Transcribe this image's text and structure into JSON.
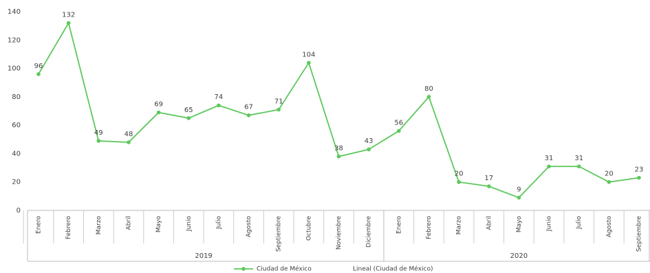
{
  "chart_data": {
    "type": "line",
    "categories": [
      "Enero",
      "Febrero",
      "Marzo",
      "Abril",
      "Mayo",
      "Junio",
      "Julio",
      "Agosto",
      "Septiembre",
      "Octubre",
      "Noviembre",
      "Diciembre",
      "Enero",
      "Febrero",
      "Marzo",
      "Abril",
      "Mayo",
      "Junio",
      "Julio",
      "Agosto",
      "Septiembre"
    ],
    "groups": [
      {
        "label": "2019",
        "count": 12
      },
      {
        "label": "2020",
        "count": 9
      }
    ],
    "series": [
      {
        "name": "Ciudad de México",
        "color": "#5cc85c",
        "values": [
          96,
          132,
          49,
          48,
          69,
          65,
          74,
          67,
          71,
          104,
          38,
          43,
          56,
          80,
          20,
          17,
          9,
          31,
          31,
          20,
          23
        ]
      }
    ],
    "trendline_name": "Lineal (Ciudad de México)",
    "ylim": [
      0,
      140
    ],
    "yticks": [
      0,
      20,
      40,
      60,
      80,
      100,
      120,
      140
    ],
    "grid": false
  }
}
